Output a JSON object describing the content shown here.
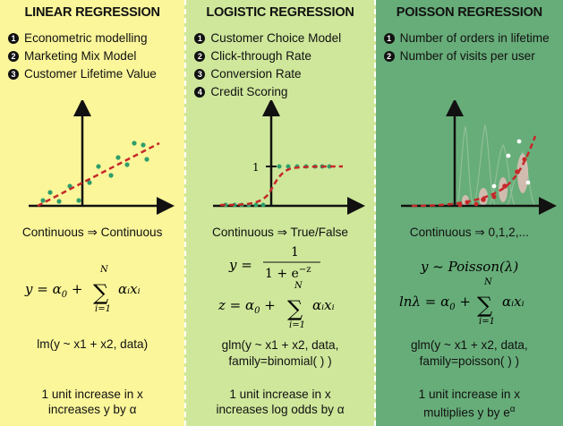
{
  "linear": {
    "title": "LINEAR REGRESSION",
    "uses": [
      "Econometric modelling",
      "Marketing Mix Model",
      "Customer Lifetime Value"
    ],
    "io": "Continuous ⇒ Continuous",
    "formula_lhs": "y = α",
    "formula_sub0": "0",
    "formula_plus": " + ",
    "sum_top": "N",
    "sum_bottom": "i=1",
    "sum_term": "αᵢxᵢ",
    "code": "lm(y ~ x1 + x2, data)",
    "interp_line1": "1 unit increase in x",
    "interp_line2": "increases y by α",
    "colors": {
      "bg": "#fbf69a",
      "dots": "#2f9e6a",
      "curve": "#c62828"
    }
  },
  "logistic": {
    "title": "LOGISTIC REGRESSION",
    "uses": [
      "Customer Choice Model",
      "Click-through Rate",
      "Conversion Rate",
      "Credit Scoring"
    ],
    "io": "Continuous ⇒ True/False",
    "f1_lhs": "y =",
    "f1_num": "1",
    "f1_den": "1 + e",
    "f1_exp": "−z",
    "f2_lhs": "z = α",
    "f2_sub0": "0",
    "f2_plus": " + ",
    "sum_top": "N",
    "sum_bottom": "i=1",
    "sum_term": "αᵢxᵢ",
    "tick_one": "1",
    "code_line1": "glm(y ~ x1 + x2, data,",
    "code_line2": "family=binomial( ) )",
    "interp_line1": "1 unit increase in x",
    "interp_line2": "increases log odds by α",
    "colors": {
      "bg": "#cfe79b",
      "dots": "#2f9e6a",
      "curve": "#c62828"
    }
  },
  "poisson": {
    "title": "POISSON REGRESSION",
    "uses": [
      "Number of orders in lifetime",
      "Number of visits per user"
    ],
    "io": "Continuous ⇒ 0,1,2,...",
    "f1": "y ~ Poisson(λ)",
    "f2_lhs": "lnλ = α",
    "f2_sub0": "0",
    "f2_plus": " + ",
    "sum_top": "N",
    "sum_bottom": "i=1",
    "sum_term": "αᵢxᵢ",
    "code_line1": "glm(y ~ x1 + x2, data,",
    "code_line2": "family=poisson( ) )",
    "interp_line1": "1 unit increase in x",
    "interp_line2_pre": "multiplies y by e",
    "interp_line2_sup": "α",
    "colors": {
      "bg": "#67ad79",
      "dots": "#c62828",
      "curve": "#c62828"
    }
  },
  "bullets": [
    "1",
    "2",
    "3",
    "4"
  ]
}
